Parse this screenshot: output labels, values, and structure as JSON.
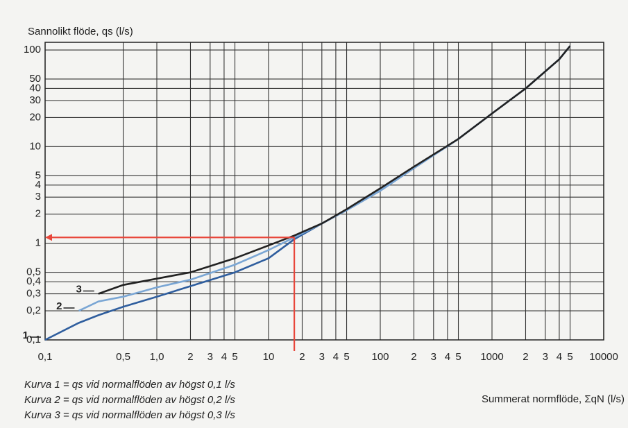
{
  "chart_data": {
    "type": "line",
    "y_label": "Sannolikt flöde, qs (l/s)",
    "x_label": "Summerat normflöde, ΣqN (l/s)",
    "log_scale": true,
    "grid": true,
    "xlim": [
      0.1,
      10000
    ],
    "ylim": [
      0.1,
      120
    ],
    "xticks": [
      {
        "value": 0.1,
        "label": "0,1"
      },
      {
        "value": 0.5,
        "label": "0,5"
      },
      {
        "value": 1,
        "label": "1,0"
      },
      2,
      3,
      4,
      5,
      10,
      {
        "value": 20,
        "label": "2"
      },
      {
        "value": 30,
        "label": "3"
      },
      {
        "value": 40,
        "label": "4"
      },
      {
        "value": 50,
        "label": "5"
      },
      100,
      {
        "value": 200,
        "label": "2"
      },
      {
        "value": 300,
        "label": "3"
      },
      {
        "value": 400,
        "label": "4"
      },
      {
        "value": 500,
        "label": "5"
      },
      1000,
      {
        "value": 2000,
        "label": "2"
      },
      {
        "value": 3000,
        "label": "3"
      },
      {
        "value": 4000,
        "label": "4"
      },
      {
        "value": 5000,
        "label": "5"
      },
      10000
    ],
    "yticks": [
      {
        "value": 0.1,
        "label": "0,1"
      },
      {
        "value": 0.2,
        "label": "0,2"
      },
      {
        "value": 0.3,
        "label": "0,3"
      },
      {
        "value": 0.4,
        "label": "0,4"
      },
      {
        "value": 0.5,
        "label": "0,5"
      },
      1,
      2,
      3,
      4,
      5,
      10,
      20,
      30,
      40,
      50,
      100
    ],
    "series": [
      {
        "name": "1",
        "color": "#2f5e9e",
        "x": [
          0.1,
          0.2,
          0.3,
          0.5,
          1,
          2,
          5,
          10,
          17,
          30,
          50,
          100,
          200,
          500,
          1000,
          2000,
          4000,
          5000
        ],
        "values": [
          0.1,
          0.15,
          0.18,
          0.22,
          0.28,
          0.36,
          0.5,
          0.7,
          1.1,
          1.6,
          2.2,
          3.5,
          6,
          12,
          22,
          40,
          80,
          110
        ]
      },
      {
        "name": "2",
        "color": "#7aa6d4",
        "x": [
          0.2,
          0.3,
          0.5,
          1,
          2,
          5,
          10,
          17,
          30,
          50,
          100,
          200,
          500,
          1000,
          2000,
          4000,
          5000
        ],
        "values": [
          0.2,
          0.25,
          0.28,
          0.35,
          0.42,
          0.6,
          0.85,
          1.15,
          1.6,
          2.2,
          3.5,
          6,
          12,
          22,
          40,
          80,
          110
        ]
      },
      {
        "name": "3",
        "color": "#222222",
        "x": [
          0.3,
          0.5,
          1,
          2,
          5,
          10,
          17,
          30,
          50,
          100,
          200,
          500,
          1000,
          2000,
          4000,
          5000
        ],
        "values": [
          0.3,
          0.37,
          0.43,
          0.5,
          0.7,
          0.95,
          1.2,
          1.6,
          2.25,
          3.7,
          6.2,
          12,
          22,
          40,
          80,
          110
        ]
      }
    ],
    "annotation": {
      "x": 17,
      "y": 1.15,
      "color": "#e8463a"
    },
    "notes": [
      "Kurva 1 = qs vid normalflöden av högst 0,1 l/s",
      "Kurva 2 = qs vid normalflöden av högst 0,2 l/s",
      "Kurva 3 = qs vid normalflöden av högst 0,3 l/s"
    ]
  }
}
